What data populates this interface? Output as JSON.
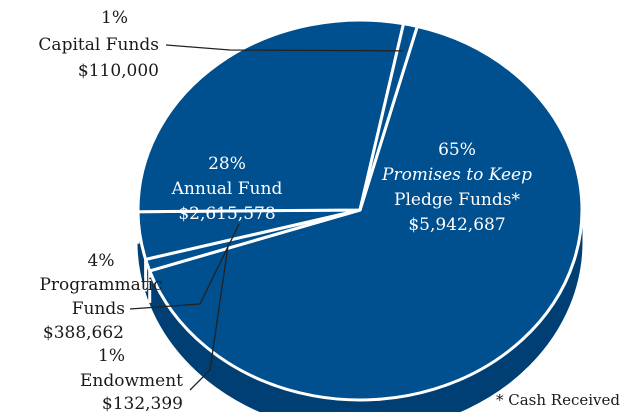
{
  "chart_data": {
    "type": "pie",
    "style": "3d",
    "colors": {
      "slice": "#004f8f",
      "side": "#003f73",
      "divider": "#ffffff",
      "leader": "#222222"
    },
    "slices": [
      {
        "key": "promises",
        "value": 65,
        "percent": "65%",
        "lines": [
          "Promises to Keep",
          "Pledge Funds*"
        ],
        "amount": "$5,942,687"
      },
      {
        "key": "endowment",
        "value": 1,
        "percent": "1%",
        "lines": [
          "Endowment"
        ],
        "amount": "$132,399"
      },
      {
        "key": "programmatic",
        "value": 4,
        "percent": "4%",
        "lines": [
          "Programmatic",
          "Funds"
        ],
        "amount": "$388,662"
      },
      {
        "key": "annual",
        "value": 28,
        "percent": "28%",
        "lines": [
          "Annual Fund"
        ],
        "amount": "$2,615,578"
      },
      {
        "key": "capital",
        "value": 1,
        "percent": "1%",
        "lines": [
          "Capital Funds"
        ],
        "amount": "$110,000"
      }
    ],
    "footnote": "* Cash Received"
  }
}
